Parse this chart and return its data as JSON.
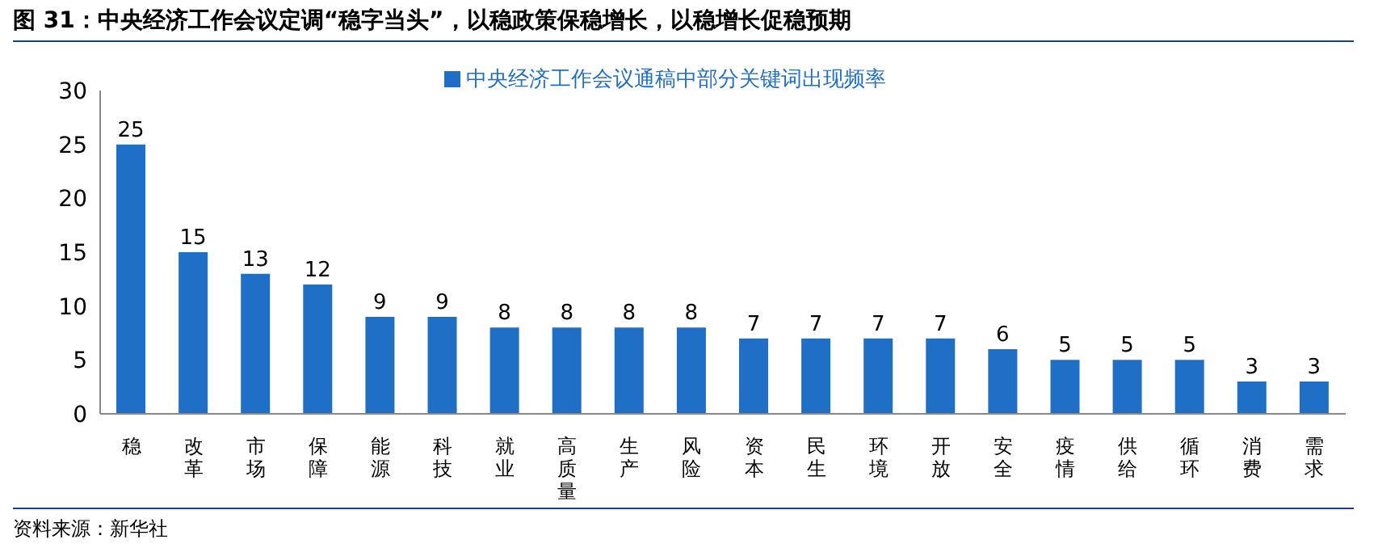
{
  "chart_data": {
    "type": "bar",
    "title": "图 31：中央经济工作会议定调“稳字当头”，以稳政策保稳增长，以稳增长促稳预期",
    "categories": [
      "稳",
      "改革",
      "市场",
      "保障",
      "能源",
      "科技",
      "就业",
      "高质量",
      "生产",
      "风险",
      "资本",
      "民生",
      "环境",
      "开放",
      "安全",
      "疫情",
      "供给",
      "循环",
      "消费",
      "需求"
    ],
    "series": [
      {
        "name": "中央经济工作会议通稿中部分关键词出现频率",
        "color": "#1f6fc6",
        "values": [
          25,
          15,
          13,
          12,
          9,
          9,
          8,
          8,
          8,
          8,
          7,
          7,
          7,
          7,
          6,
          5,
          5,
          5,
          3,
          3
        ]
      }
    ],
    "ylim": [
      0,
      30
    ],
    "yticks": [
      0,
      5,
      10,
      15,
      20,
      25,
      30
    ],
    "grid": false,
    "legend": "top",
    "data_labels": true,
    "annotations": [
      "资料来源：新华社"
    ]
  }
}
